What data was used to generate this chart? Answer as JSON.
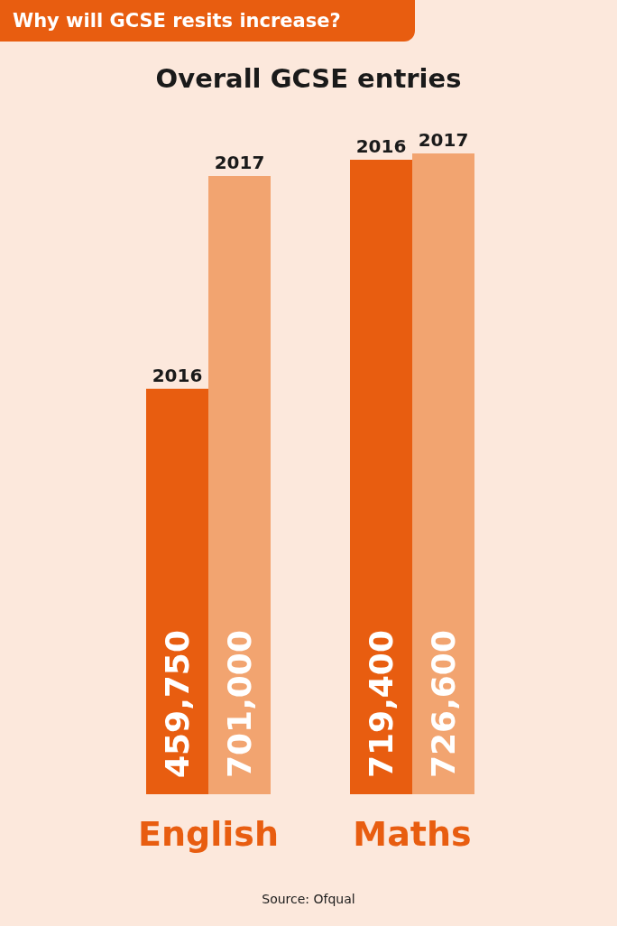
{
  "chart_data": {
    "type": "bar",
    "title": "Why will GCSE resits increase?",
    "subtitle": "Overall GCSE entries",
    "categories": [
      "English",
      "Maths"
    ],
    "series": [
      {
        "name": "2016",
        "color": "#e85d10",
        "values": [
          459750,
          719400
        ],
        "value_labels": [
          "459,750",
          "719,400"
        ]
      },
      {
        "name": "2017",
        "color": "#f2a470",
        "values": [
          701000,
          726600
        ],
        "value_labels": [
          "701,000",
          "726,600"
        ]
      }
    ],
    "annotations": [
      "Source: Ofqual"
    ]
  }
}
